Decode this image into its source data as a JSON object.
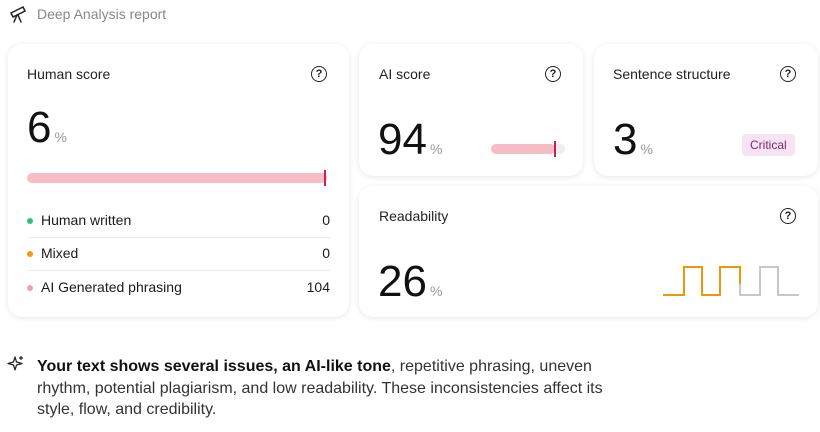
{
  "header": {
    "title": "Deep Analysis report"
  },
  "cards": {
    "human": {
      "title": "Human score",
      "value": "6",
      "unit": "%",
      "rows": [
        {
          "label": "Human written",
          "count": "0"
        },
        {
          "label": "Mixed",
          "count": "0"
        },
        {
          "label": "AI Generated phrasing",
          "count": "104"
        }
      ]
    },
    "ai": {
      "title": "AI score",
      "value": "94",
      "unit": "%"
    },
    "sentence": {
      "title": "Sentence structure",
      "value": "3",
      "unit": "%",
      "badge": "Critical"
    },
    "readability": {
      "title": "Readability",
      "value": "26",
      "unit": "%"
    }
  },
  "summary": {
    "bold": "Your text shows several issues, an AI-like tone",
    "text": ", repetitive phrasing, uneven rhythm, potential plagiarism, and low readability. These inconsistencies affect its style, flow, and credibility."
  }
}
